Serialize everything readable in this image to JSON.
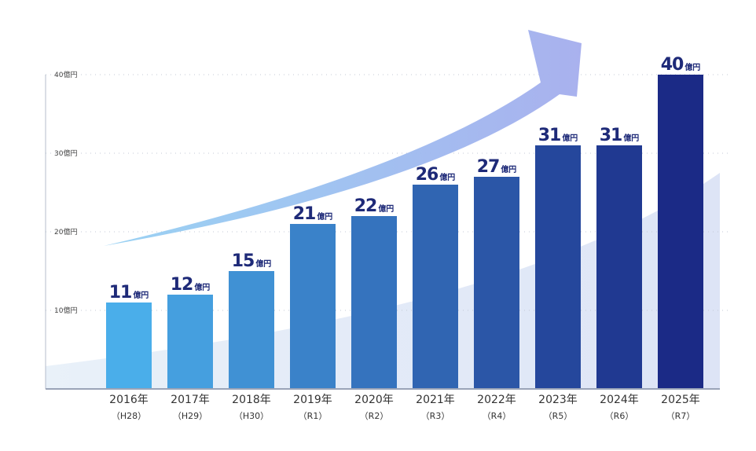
{
  "chart_data": {
    "type": "bar",
    "categories": [
      "2016年",
      "2017年",
      "2018年",
      "2019年",
      "2020年",
      "2021年",
      "2022年",
      "2023年",
      "2024年",
      "2025年"
    ],
    "subcategories": [
      "（H28）",
      "（H29）",
      "（H30）",
      "（R1）",
      "（R2）",
      "（R3）",
      "（R4）",
      "（R5）",
      "（R6）",
      "（R7）"
    ],
    "values": [
      11,
      12,
      15,
      21,
      22,
      26,
      27,
      31,
      31,
      40
    ],
    "value_unit": "億円",
    "ylim": [
      0,
      40
    ],
    "yticks": [
      {
        "value": 10,
        "label": "10億円"
      },
      {
        "value": 20,
        "label": "20億円"
      },
      {
        "value": 30,
        "label": "30億円"
      },
      {
        "value": 40,
        "label": "40億円"
      }
    ],
    "grid": true,
    "colors": {
      "bar_start": "#4aaeea",
      "bar_end": "#1b2a86",
      "label": "#1e2a78",
      "arrow_start": "#8fcdf2",
      "arrow_end": "#a9b1ee",
      "axis": "#9aa4b8"
    }
  }
}
